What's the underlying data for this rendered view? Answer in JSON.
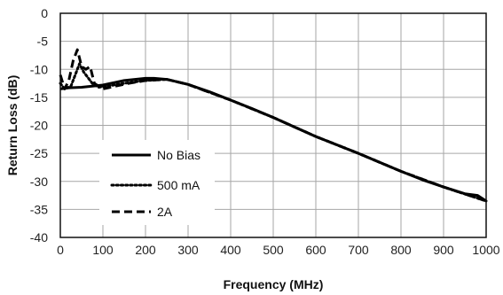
{
  "chart_data": {
    "type": "line",
    "title": "",
    "xlabel": "Frequency (MHz)",
    "ylabel": "Return Loss (dB)",
    "xlim": [
      0,
      1000
    ],
    "ylim": [
      -40,
      0
    ],
    "x_ticks": [
      0,
      100,
      200,
      300,
      400,
      500,
      600,
      700,
      800,
      900,
      1000
    ],
    "y_ticks": [
      0,
      -5,
      -10,
      -15,
      -20,
      -25,
      -30,
      -35,
      -40
    ],
    "x_tick_labels": [
      "0",
      "100",
      "200",
      "300",
      "400",
      "500",
      "600",
      "700",
      "800",
      "900",
      "1000"
    ],
    "y_tick_labels": [
      "0",
      "-5",
      "-10",
      "-15",
      "-20",
      "-25",
      "-30",
      "-35",
      "-40"
    ],
    "grid": true,
    "legend_position": "bottom-left inside plot",
    "series": [
      {
        "name": "No Bias",
        "style": "solid",
        "color": "#000000",
        "x": [
          0,
          20,
          50,
          100,
          150,
          200,
          220,
          250,
          300,
          350,
          400,
          450,
          500,
          550,
          600,
          650,
          700,
          750,
          800,
          850,
          900,
          950,
          980,
          1000
        ],
        "y": [
          -13.5,
          -13.3,
          -13.2,
          -12.8,
          -12.0,
          -11.6,
          -11.6,
          -11.8,
          -12.7,
          -14.0,
          -15.5,
          -17.0,
          -18.6,
          -20.3,
          -22.0,
          -23.5,
          -25.0,
          -26.6,
          -28.2,
          -29.7,
          -31.0,
          -32.2,
          -32.5,
          -33.5
        ]
      },
      {
        "name": "500 mA",
        "style": "dotted",
        "color": "#000000",
        "x": [
          0,
          10,
          25,
          35,
          45,
          55,
          65,
          75,
          90,
          110,
          150,
          200,
          250,
          300,
          400,
          500,
          600,
          700,
          800,
          900,
          1000
        ],
        "y": [
          -12.5,
          -13.5,
          -13.0,
          -11.0,
          -9.0,
          -10.5,
          -11.5,
          -12.5,
          -13.2,
          -13.0,
          -12.5,
          -12.0,
          -11.8,
          -12.7,
          -15.5,
          -18.6,
          -22.0,
          -25.0,
          -28.2,
          -31.0,
          -33.5
        ]
      },
      {
        "name": "2A",
        "style": "dashed",
        "color": "#000000",
        "x": [
          0,
          10,
          20,
          30,
          40,
          50,
          60,
          70,
          80,
          100,
          130,
          160,
          200,
          250,
          300,
          400,
          500,
          600,
          700,
          800,
          900,
          1000
        ],
        "y": [
          -11.0,
          -13.5,
          -12.0,
          -8.5,
          -6.5,
          -9.5,
          -10.0,
          -9.5,
          -12.5,
          -13.5,
          -13.0,
          -12.5,
          -12.0,
          -11.8,
          -12.7,
          -15.5,
          -18.6,
          -22.0,
          -25.0,
          -28.2,
          -31.0,
          -33.5
        ]
      }
    ]
  }
}
